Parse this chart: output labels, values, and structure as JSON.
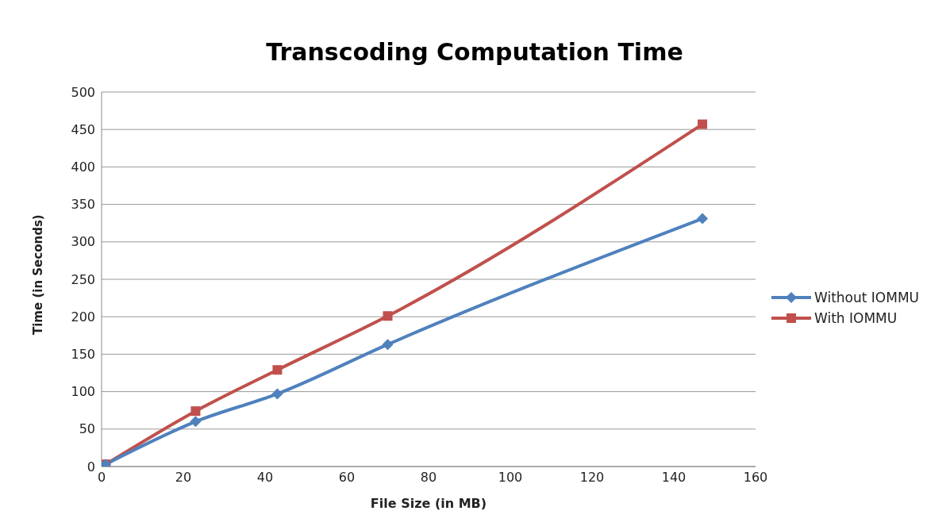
{
  "chart_data": {
    "type": "line",
    "title": "Transcoding Computation Time",
    "xlabel": "File Size (in MB)",
    "ylabel": "Time (in Seconds)",
    "x": [
      1,
      23,
      43,
      70,
      147
    ],
    "series": [
      {
        "name": "Without IOMMU",
        "color": "#4f81bd",
        "marker": "diamond",
        "values": [
          3,
          60,
          97,
          163,
          331
        ]
      },
      {
        "name": "With IOMMU",
        "color": "#c0504d",
        "marker": "square",
        "values": [
          3,
          74,
          129,
          201,
          457
        ]
      }
    ],
    "xlim": [
      0,
      160
    ],
    "xticks": [
      0,
      20,
      40,
      60,
      80,
      100,
      120,
      140,
      160
    ],
    "ylim": [
      0,
      500
    ],
    "yticks": [
      0,
      50,
      100,
      150,
      200,
      250,
      300,
      350,
      400,
      450,
      500
    ],
    "grid": "y",
    "legend": "right",
    "line_style": "solid"
  }
}
